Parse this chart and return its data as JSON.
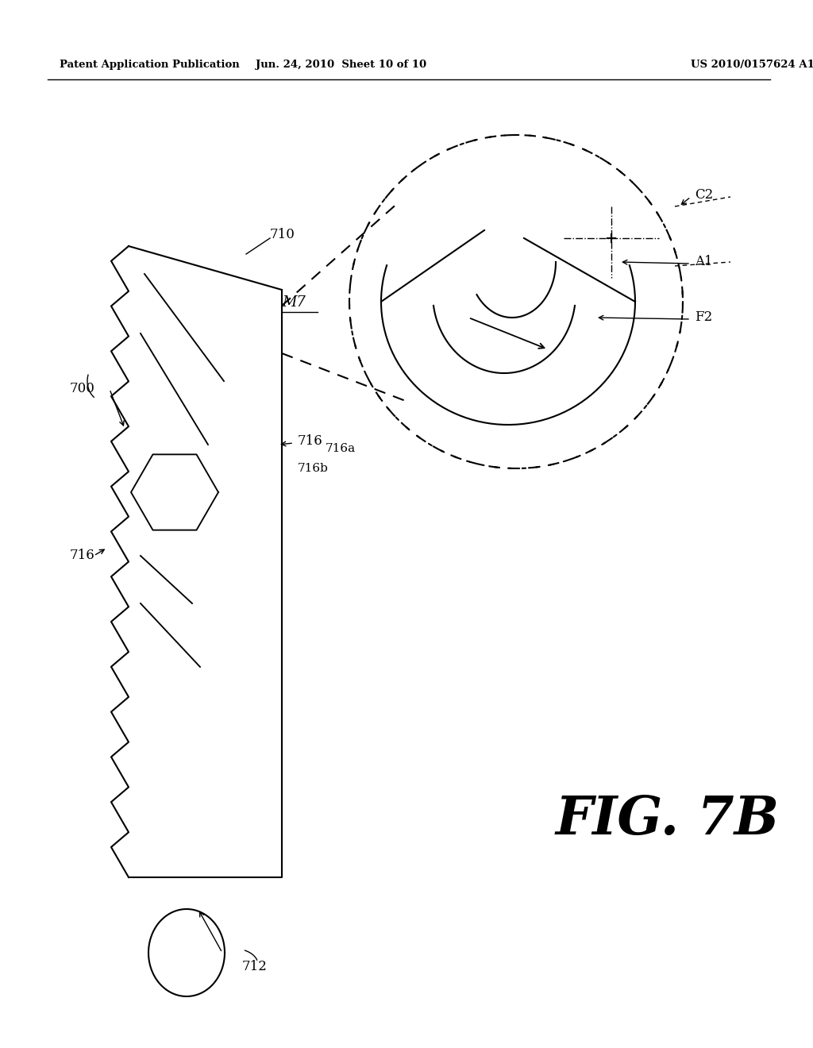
{
  "bg_color": "#ffffff",
  "line_color": "#000000",
  "header_left": "Patent Application Publication",
  "header_mid": "Jun. 24, 2010  Sheet 10 of 10",
  "header_right": "US 2010/0157624 A1",
  "fig_label": "FIG. 7B"
}
